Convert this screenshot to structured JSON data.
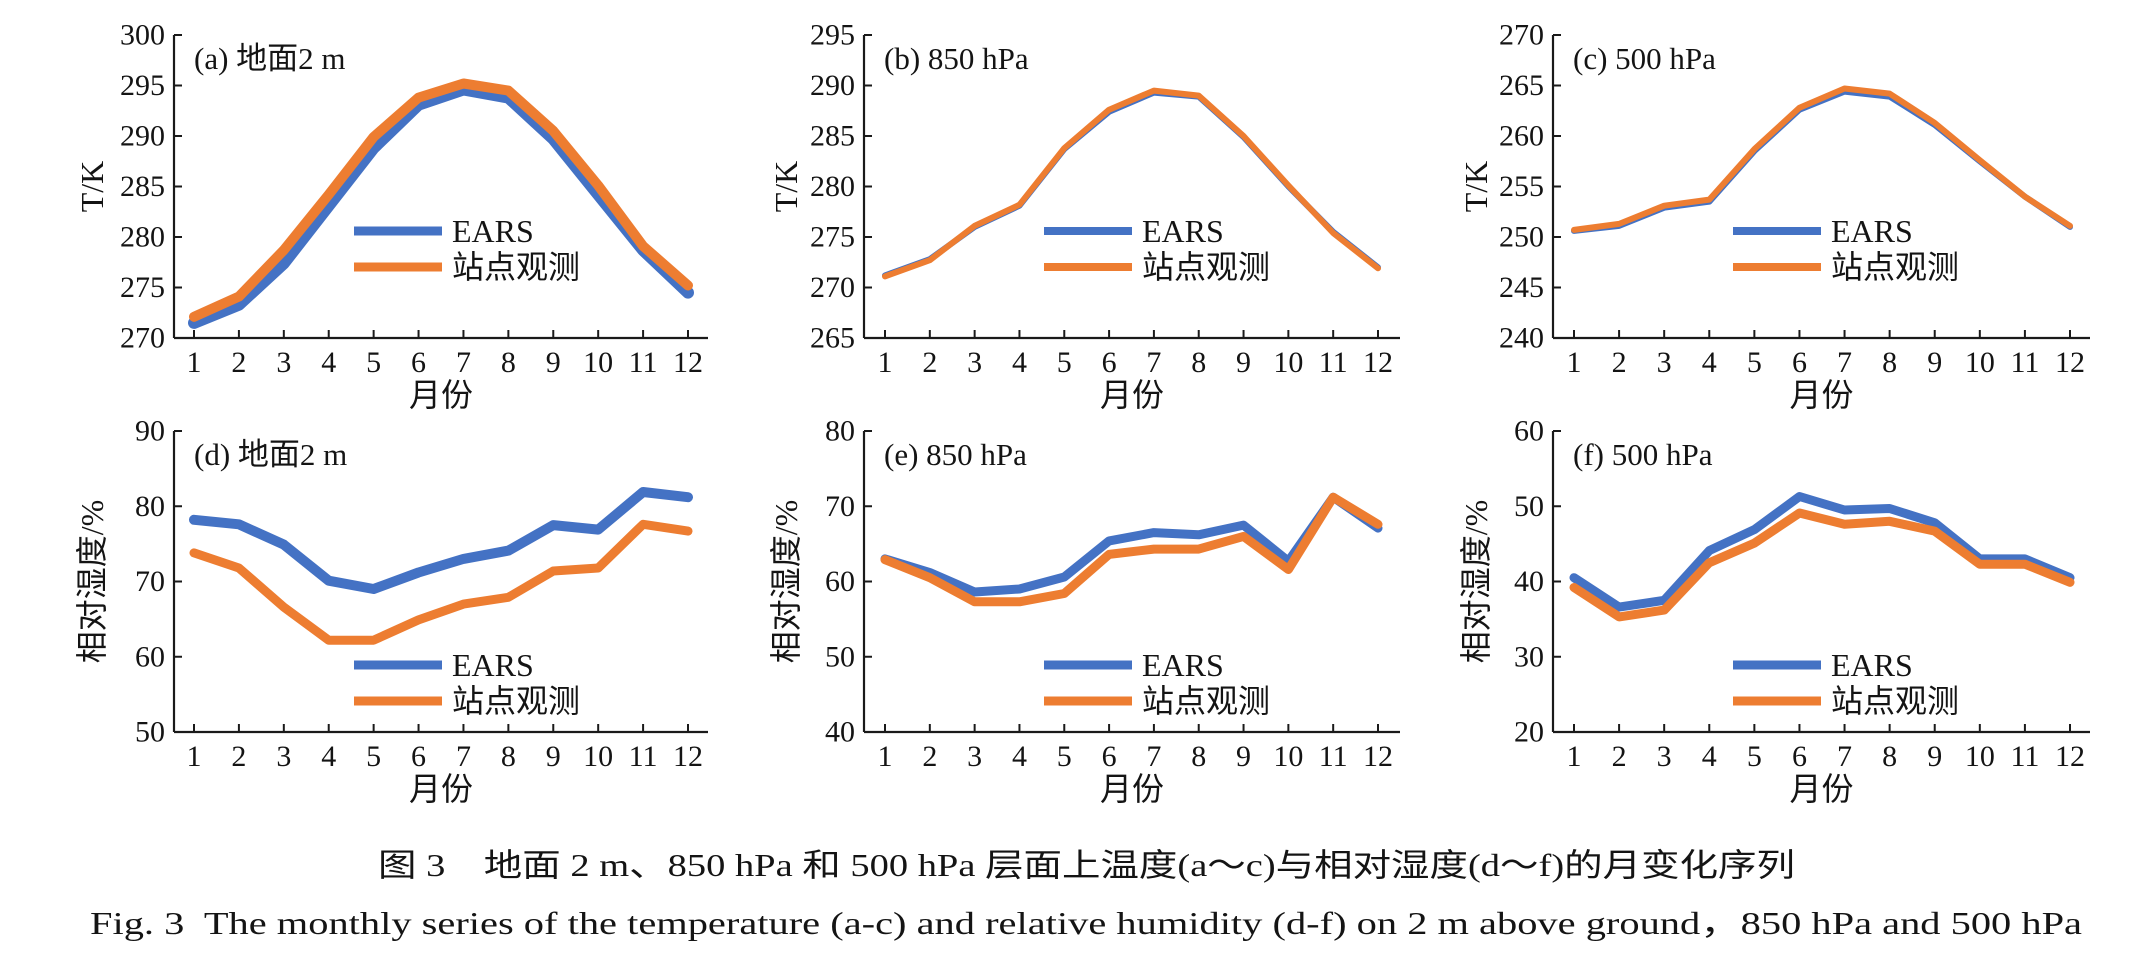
{
  "figure": {
    "caption_zh": "图 3　地面 2 m、850 hPa 和 500 hPa 层面上温度(a～c)与相对湿度(d～f)的月变化序列",
    "caption_en": "Fig. 3  The monthly series of the temperature (a-c) and relative humidity (d-f) on 2 m above ground，850 hPa and 500 hPa"
  },
  "chart_data": [
    {
      "type": "line",
      "title": "(a) 地面2 m",
      "xlabel": "月份",
      "ylabel": "T/K",
      "x": [
        1,
        2,
        3,
        4,
        5,
        6,
        7,
        8,
        9,
        10,
        11,
        12
      ],
      "ylim": [
        270,
        300
      ],
      "yticks": [
        270,
        275,
        280,
        285,
        290,
        295,
        300
      ],
      "grid": false,
      "legend": "center",
      "series": [
        {
          "name": "EARS",
          "color": "#4472C4",
          "values": [
            271.5,
            273.3,
            277.4,
            283.1,
            288.8,
            293.1,
            294.6,
            293.8,
            289.7,
            284.2,
            278.7,
            274.5
          ]
        },
        {
          "name": "站点观测",
          "color": "#ED7D31",
          "values": [
            272.1,
            274.1,
            278.7,
            284.2,
            289.9,
            293.8,
            295.2,
            294.5,
            290.5,
            285.1,
            279.1,
            275.2
          ]
        }
      ]
    },
    {
      "type": "line",
      "title": "(b) 850 hPa",
      "xlabel": "月份",
      "ylabel": "T/K",
      "x": [
        1,
        2,
        3,
        4,
        5,
        6,
        7,
        8,
        9,
        10,
        11,
        12
      ],
      "ylim": [
        265,
        295
      ],
      "yticks": [
        265,
        270,
        275,
        280,
        285,
        290,
        295
      ],
      "grid": false,
      "legend": "center",
      "series": [
        {
          "name": "EARS",
          "color": "#4472C4",
          "values": [
            271.2,
            272.8,
            276.0,
            278.1,
            283.7,
            287.4,
            289.3,
            288.9,
            284.9,
            280.0,
            275.5,
            272.0
          ]
        },
        {
          "name": "站点观测",
          "color": "#ED7D31",
          "values": [
            271.1,
            272.7,
            276.1,
            278.2,
            283.8,
            287.6,
            289.5,
            289.0,
            285.0,
            280.1,
            275.4,
            271.9
          ]
        }
      ]
    },
    {
      "type": "line",
      "title": "(c) 500 hPa",
      "xlabel": "月份",
      "ylabel": "T/K",
      "x": [
        1,
        2,
        3,
        4,
        5,
        6,
        7,
        8,
        9,
        10,
        11,
        12
      ],
      "ylim": [
        240,
        270
      ],
      "yticks": [
        240,
        245,
        250,
        255,
        260,
        265,
        270
      ],
      "grid": false,
      "legend": "center",
      "series": [
        {
          "name": "EARS",
          "color": "#4472C4",
          "values": [
            250.6,
            251.1,
            252.9,
            253.5,
            258.5,
            262.6,
            264.4,
            263.9,
            261.1,
            257.5,
            254.0,
            251.0
          ]
        },
        {
          "name": "站点观测",
          "color": "#ED7D31",
          "values": [
            250.7,
            251.3,
            253.1,
            253.7,
            258.7,
            262.8,
            264.7,
            264.2,
            261.3,
            257.6,
            254.0,
            251.1
          ]
        }
      ]
    },
    {
      "type": "line",
      "title": "(d) 地面2 m",
      "xlabel": "月份",
      "ylabel": "相对湿度/%",
      "x": [
        1,
        2,
        3,
        4,
        5,
        6,
        7,
        8,
        9,
        10,
        11,
        12
      ],
      "ylim": [
        50,
        90
      ],
      "yticks": [
        50,
        60,
        70,
        80,
        90
      ],
      "grid": false,
      "legend": "center",
      "series": [
        {
          "name": "EARS",
          "color": "#4472C4",
          "values": [
            78.2,
            77.6,
            74.9,
            70.1,
            69.0,
            71.2,
            73.0,
            74.1,
            77.5,
            76.9,
            81.9,
            81.2
          ]
        },
        {
          "name": "站点观测",
          "color": "#ED7D31",
          "values": [
            73.8,
            71.8,
            66.6,
            62.2,
            62.2,
            64.9,
            67.0,
            67.9,
            71.4,
            71.8,
            77.6,
            76.7
          ]
        }
      ]
    },
    {
      "type": "line",
      "title": "(e) 850 hPa",
      "xlabel": "月份",
      "ylabel": "相对湿度/%",
      "x": [
        1,
        2,
        3,
        4,
        5,
        6,
        7,
        8,
        9,
        10,
        11,
        12
      ],
      "ylim": [
        40,
        80
      ],
      "yticks": [
        40,
        50,
        60,
        70,
        80
      ],
      "grid": false,
      "legend": "center",
      "series": [
        {
          "name": "EARS",
          "color": "#4472C4",
          "values": [
            63.0,
            61.2,
            58.6,
            59.0,
            60.6,
            65.4,
            66.5,
            66.2,
            67.5,
            62.7,
            71.2,
            67.1
          ]
        },
        {
          "name": "站点观测",
          "color": "#ED7D31",
          "values": [
            62.9,
            60.5,
            57.3,
            57.3,
            58.4,
            63.6,
            64.3,
            64.3,
            66.0,
            61.6,
            71.2,
            67.6
          ]
        }
      ]
    },
    {
      "type": "line",
      "title": "(f) 500 hPa",
      "xlabel": "月份",
      "ylabel": "相对湿度/%",
      "x": [
        1,
        2,
        3,
        4,
        5,
        6,
        7,
        8,
        9,
        10,
        11,
        12
      ],
      "ylim": [
        20,
        60
      ],
      "yticks": [
        20,
        30,
        40,
        50,
        60
      ],
      "grid": false,
      "legend": "center",
      "series": [
        {
          "name": "EARS",
          "color": "#4472C4",
          "values": [
            40.5,
            36.6,
            37.5,
            44.1,
            46.9,
            51.3,
            49.5,
            49.7,
            47.8,
            43.0,
            43.0,
            40.5
          ]
        },
        {
          "name": "站点观测",
          "color": "#ED7D31",
          "values": [
            39.2,
            35.3,
            36.2,
            42.5,
            45.1,
            49.1,
            47.6,
            48.0,
            46.7,
            42.3,
            42.3,
            39.9
          ]
        }
      ]
    }
  ]
}
